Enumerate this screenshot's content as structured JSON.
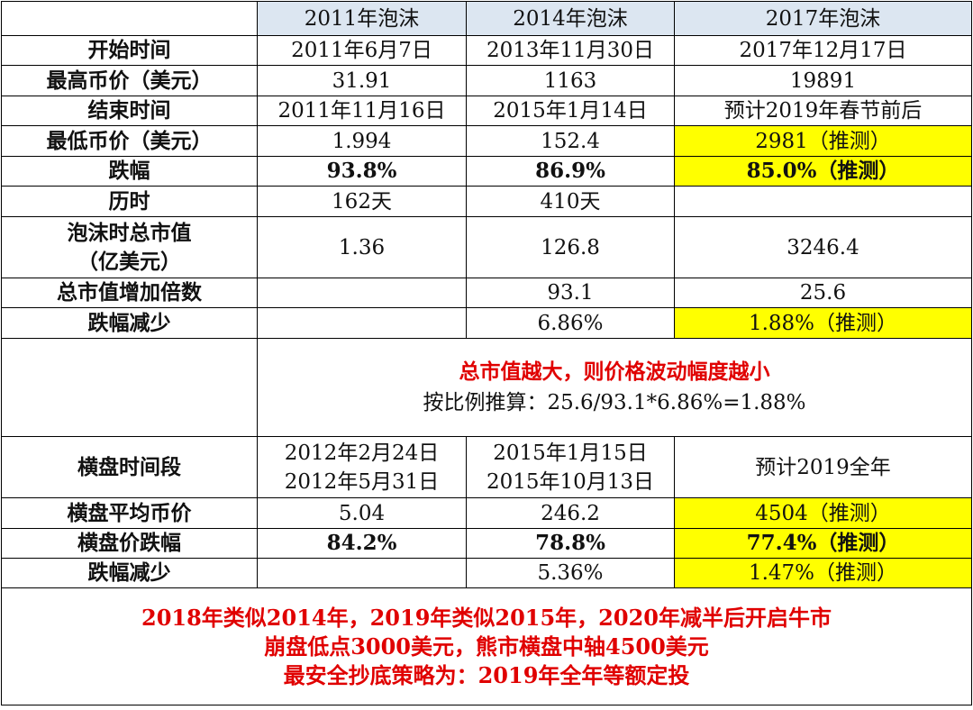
{
  "table": {
    "header": [
      "2011年泡沫",
      "2014年泡沫",
      "2017年泡沫"
    ],
    "rows": [
      [
        "开始时间",
        "2011年6月7日",
        "2013年11月30日",
        "2017年12月17日"
      ],
      [
        "最高币价（美元）",
        "31.91",
        "1163",
        "19891"
      ],
      [
        "结束时间",
        "2011年11月16日",
        "2015年1月14日",
        "预计2019年春节前后"
      ],
      [
        "最低币价（美元）",
        "1.994",
        "152.4",
        "2981（推测）"
      ],
      [
        "跌幅",
        "93.8%",
        "86.9%",
        "85.0%（推测）"
      ],
      [
        "历时",
        "162天",
        "410天",
        null
      ],
      [
        [
          "泡沫时总市值",
          "（亿美元）"
        ],
        "1.36",
        "126.8",
        "3246.4"
      ],
      [
        "总市值增加倍数",
        null,
        "93.1",
        "25.6"
      ],
      [
        "跌幅减少",
        null,
        "6.86%",
        "1.88%（推测）"
      ]
    ],
    "note": {
      "headline": "总市值越大，则价格波动幅度越小",
      "formula": "按比例推算：25.6/93.1*6.86%=1.88%"
    },
    "rows2": [
      [
        "横盘时间段",
        [
          "2012年2月24日",
          "2012年5月31日"
        ],
        [
          "2015年1月15日",
          "2015年10月13日"
        ],
        "预计2019全年"
      ],
      [
        "横盘平均币价",
        "5.04",
        "246.2",
        "4504（推测）"
      ],
      [
        "横盘价跌幅",
        "84.2%",
        "78.8%",
        "77.4%（推测）"
      ],
      [
        "跌幅减少",
        null,
        "5.36%",
        "1.47%（推测）"
      ]
    ],
    "footer": [
      "2018年类似2014年，2019年类似2015年，2020年减半后开启牛市",
      "崩盘低点3000美元，熊市横盘中轴4500美元",
      "最安全抄底策略为：2019年全年等额定投"
    ]
  }
}
